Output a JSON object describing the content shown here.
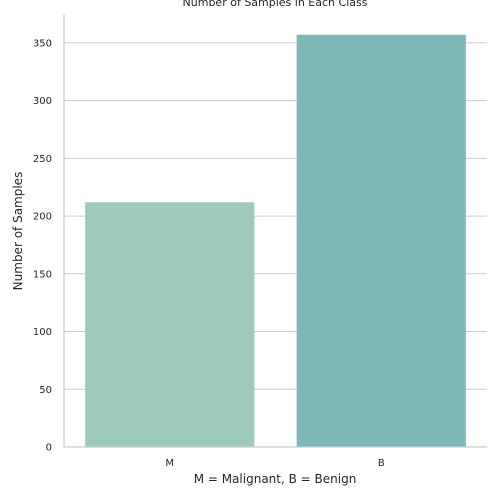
{
  "chart_data": {
    "type": "bar",
    "title": "Number of Samples in Each Class",
    "xlabel": "M = Malignant, B = Benign",
    "ylabel": "Number of Samples",
    "categories": [
      "M",
      "B"
    ],
    "values": [
      212,
      357
    ],
    "colors": [
      "#9fc9bb",
      "#7fb8bb"
    ],
    "ylim": [
      0,
      375
    ],
    "yticks": [
      0,
      50,
      100,
      150,
      200,
      250,
      300,
      350
    ],
    "grid": "horizontal",
    "legend": "none"
  }
}
